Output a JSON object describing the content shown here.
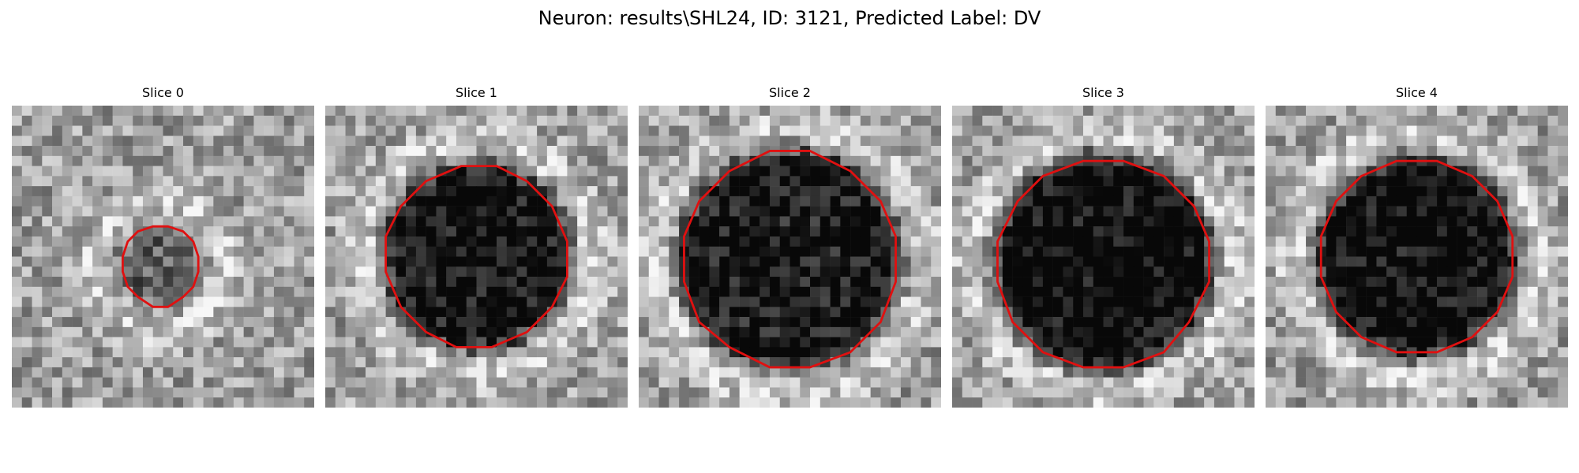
{
  "figure": {
    "title": "Neuron: results\\SHL24, ID: 3121, Predicted Label: DV"
  },
  "panels": [
    {
      "title": "Slice 0",
      "contour_scale": 0.44,
      "contour_center": [
        0.49,
        0.53
      ],
      "darkness": 0.35
    },
    {
      "title": "Slice 1",
      "contour_scale": 1.0,
      "contour_center": [
        0.5,
        0.5
      ],
      "darkness": 0.75
    },
    {
      "title": "Slice 2",
      "contour_scale": 1.18,
      "contour_center": [
        0.5,
        0.51
      ],
      "darkness": 0.72
    },
    {
      "title": "Slice 3",
      "contour_scale": 1.15,
      "contour_center": [
        0.5,
        0.52
      ],
      "darkness": 0.8
    },
    {
      "title": "Slice 4",
      "contour_scale": 1.07,
      "contour_center": [
        0.5,
        0.5
      ],
      "darkness": 0.78
    }
  ],
  "colors": {
    "contour": "#e01010",
    "background": "#ffffff"
  }
}
